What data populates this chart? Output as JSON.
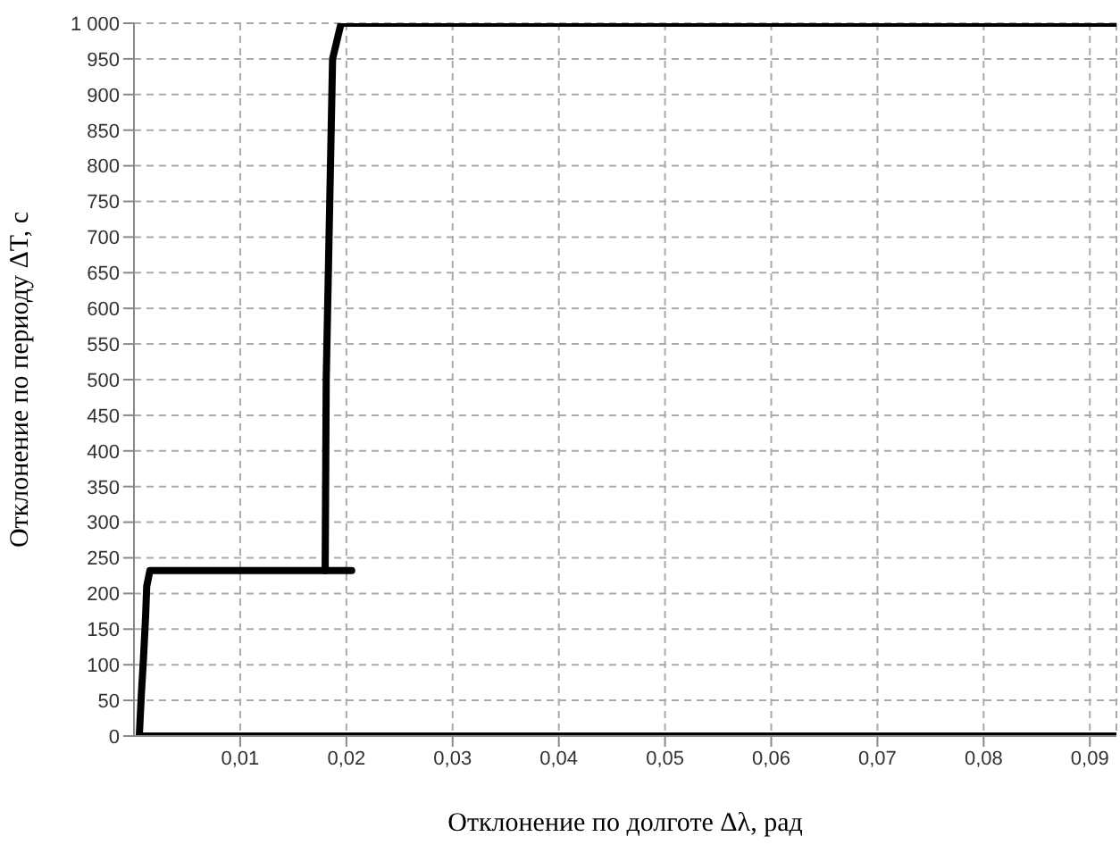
{
  "chart_data": {
    "type": "line",
    "xlabel": "Отклонение по долготе Δλ, рад",
    "ylabel": "Отклонение по периоду ΔT, с",
    "series": [
      {
        "color": "#000000",
        "x": [
          0.0005,
          0.0007,
          0.0009,
          0.0011,
          0.0012,
          0.0015,
          0.018,
          0.0181,
          0.0185,
          0.0187,
          0.0195,
          0.0925
        ],
        "values": [
          0,
          60,
          110,
          170,
          210,
          232,
          232,
          500,
          800,
          950,
          1000,
          1000
        ]
      },
      {
        "color": "#000000",
        "x": [
          0.018,
          0.0205
        ],
        "values": [
          232,
          232
        ]
      },
      {
        "color": "#000000",
        "x": [
          0.0005,
          0.0925
        ],
        "values": [
          0,
          0
        ]
      }
    ],
    "xlim": [
      0,
      0.0925
    ],
    "xticks": [
      {
        "value": 0.01,
        "label": "0,01"
      },
      {
        "value": 0.02,
        "label": "0,02"
      },
      {
        "value": 0.03,
        "label": "0,03"
      },
      {
        "value": 0.04,
        "label": "0,04"
      },
      {
        "value": 0.05,
        "label": "0,05"
      },
      {
        "value": 0.06,
        "label": "0,06"
      },
      {
        "value": 0.07,
        "label": "0,07"
      },
      {
        "value": 0.08,
        "label": "0,08"
      },
      {
        "value": 0.09,
        "label": "0,09"
      }
    ],
    "ylim": [
      0,
      1000
    ],
    "yticks": [
      0,
      50,
      100,
      150,
      200,
      250,
      300,
      350,
      400,
      450,
      500,
      550,
      600,
      650,
      700,
      750,
      800,
      850,
      900,
      950,
      {
        "value": 1000,
        "label": "1 000"
      }
    ],
    "grid": true,
    "marker": "none",
    "line_style": "solid"
  }
}
